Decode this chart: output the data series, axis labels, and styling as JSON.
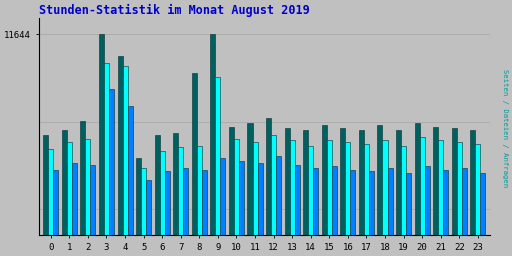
{
  "title": "Stunden-Statistik im Monat August 2019",
  "title_color": "#0000cc",
  "title_fontsize": 8.5,
  "background_color": "#c0c0c0",
  "plot_bg_color": "#c0c0c0",
  "hours": [
    0,
    1,
    2,
    3,
    4,
    5,
    6,
    7,
    8,
    9,
    10,
    11,
    12,
    13,
    14,
    15,
    16,
    17,
    18,
    19,
    20,
    21,
    22,
    23
  ],
  "ylabel_right": "Seiten / Dateien / Anfragen",
  "ytick_label": "11644",
  "ytick_value": 11644,
  "green_bars": [
    5800,
    6100,
    6600,
    11644,
    10400,
    4500,
    5800,
    5900,
    9400,
    11644,
    6300,
    6500,
    6800,
    6200,
    6100,
    6400,
    6200,
    6100,
    6400,
    6100,
    6500,
    6300,
    6200,
    6100
  ],
  "cyan_bars": [
    5000,
    5400,
    5600,
    10000,
    9800,
    3900,
    4900,
    5100,
    5200,
    9200,
    5600,
    5400,
    5800,
    5500,
    5200,
    5500,
    5400,
    5300,
    5500,
    5200,
    5700,
    5500,
    5400,
    5300
  ],
  "blue_bars": [
    3800,
    4200,
    4100,
    8500,
    7500,
    3200,
    3700,
    3900,
    3800,
    4500,
    4300,
    4200,
    4600,
    4100,
    3900,
    4000,
    3800,
    3700,
    3900,
    3600,
    4000,
    3800,
    3900,
    3600
  ],
  "green_color": "#006060",
  "cyan_color": "#00ffff",
  "blue_color": "#0080ff",
  "bar_edge_color": "#003030",
  "grid_color": "#aaaaaa",
  "bar_width": 0.27,
  "bar_spacing": 0.27
}
